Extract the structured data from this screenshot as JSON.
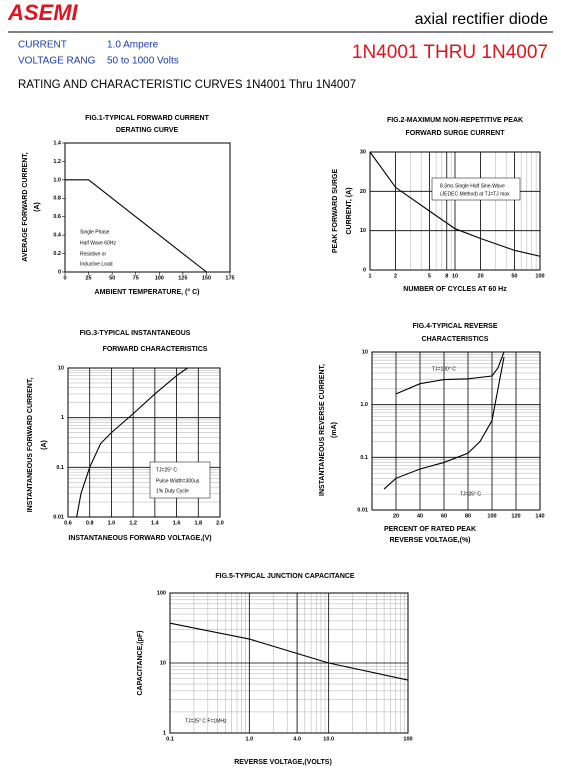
{
  "header": {
    "logo": "ASEMI",
    "product": "axial rectifier diode",
    "specs": [
      [
        "CURRENT",
        "1.0 Ampere"
      ],
      [
        "VOLTAGE RANG",
        "50 to 1000 Volts"
      ]
    ],
    "part_range": "1N4001 THRU 1N4007",
    "heading": "RATING AND CHARACTERISTIC CURVES 1N4001 Thru 1N4007"
  },
  "chart_data": [
    {
      "type": "line",
      "title": [
        "FIG.1-TYPICAL FORWARD CURRENT",
        "DERATING CURVE"
      ],
      "ylabel": [
        "AVERAGE FORWARD CURRENT,",
        "(A)"
      ],
      "xlabel": [
        "AMBIENT TEMPERATURE, (° C)"
      ],
      "xlim": [
        0,
        175
      ],
      "xticks": [
        0,
        25,
        50,
        75,
        100,
        125,
        150,
        175
      ],
      "ylim": [
        0,
        1.4
      ],
      "yticks": [
        0,
        0.2,
        0.4,
        0.6,
        0.8,
        {
          "value": 1,
          "label": "1.0"
        },
        1.2,
        1.4
      ],
      "grid": false,
      "series": [
        {
          "color": "#000000",
          "x": [
            0,
            25,
            150
          ],
          "values": [
            1,
            1,
            0
          ]
        }
      ],
      "annotations": [
        "Single Phase",
        "Half Wave 60Hz",
        "Resistive or",
        "Inductive Load"
      ]
    },
    {
      "type": "line",
      "title": [
        "FIG.2-MAXIMUM NON-REPETITIVE PEAK",
        "FORWARD SURGE CURRENT"
      ],
      "ylabel": [
        "PEAK FORWARD SURGE",
        "CURRENT, (A)"
      ],
      "xlabel": [
        "NUMBER OF CYCLES AT 60 Hz"
      ],
      "xlog": true,
      "xlim": [
        1,
        100
      ],
      "xticks": [
        1,
        2,
        5,
        8,
        10,
        20,
        50,
        100
      ],
      "ylim": [
        0,
        30
      ],
      "yticks": [
        0,
        10,
        20,
        30
      ],
      "grid": true,
      "series": [
        {
          "color": "#000000",
          "x": [
            1,
            2,
            5,
            10,
            20,
            50,
            100
          ],
          "values": [
            30,
            21,
            15,
            10.5,
            8,
            5,
            3.5
          ]
        }
      ],
      "annotations": [
        "8.3ms Single Half Sine-Wave",
        "(JEDEC Method) at TJ=TJ max"
      ]
    },
    {
      "type": "line",
      "title": [
        "FIG.3-TYPICAL INSTANTANEOUS",
        "FORWARD CHARACTERISTICS"
      ],
      "ylabel": [
        "INSTANTANEOUS FORWARD CURRENT,",
        "(A)"
      ],
      "xlabel": [
        "INSTANTANEOUS FORWARD VOLTAGE,(V)"
      ],
      "xlim": [
        0.6,
        2.0
      ],
      "xticks": [
        0.6,
        0.8,
        {
          "value": 1,
          "label": "1.0"
        },
        1.2,
        1.4,
        1.6,
        1.8,
        {
          "value": 2,
          "label": "2.0"
        }
      ],
      "ylog": true,
      "ylim": [
        0.01,
        10
      ],
      "yticks": [
        0.01,
        0.1,
        1,
        10
      ],
      "grid": true,
      "series": [
        {
          "color": "#000000",
          "x": [
            0.68,
            0.72,
            0.8,
            0.9,
            1.0,
            1.2,
            1.4,
            1.6,
            1.7
          ],
          "values": [
            0.01,
            0.03,
            0.1,
            0.3,
            0.5,
            1.2,
            3,
            7,
            10
          ]
        }
      ],
      "annotations": [
        "TJ=25° C",
        "Pulse Width=300us",
        "1% Duty Cycle"
      ]
    },
    {
      "type": "line",
      "title": [
        "FIG.4-TYPICAL REVERSE",
        "CHARACTERISTICS"
      ],
      "ylabel": [
        "INSTANTANEOUS REVERSE CURRENT,",
        "(mA)"
      ],
      "xlabel": [
        "PERCENT OF RATED PEAK",
        "REVERSE VOLTAGE,(%)"
      ],
      "xlim": [
        0,
        140
      ],
      "xticks": [
        20,
        40,
        60,
        80,
        100,
        120,
        140
      ],
      "ylog": true,
      "ylim": [
        0.01,
        10
      ],
      "yticks": [
        0.01,
        0.1,
        {
          "value": 1,
          "label": "1.0"
        },
        10
      ],
      "grid": true,
      "series": [
        {
          "name": "TJ=100° C",
          "color": "#000000",
          "x": [
            20,
            40,
            60,
            80,
            100,
            105,
            110
          ],
          "values": [
            1.6,
            2.5,
            3,
            3.1,
            3.5,
            5,
            10
          ]
        },
        {
          "name": "TJ=25° C",
          "color": "#000000",
          "x": [
            10,
            20,
            40,
            60,
            80,
            90,
            100,
            105,
            110
          ],
          "values": [
            0.025,
            0.04,
            0.06,
            0.08,
            0.12,
            0.2,
            0.5,
            2,
            8
          ]
        }
      ]
    },
    {
      "type": "line",
      "title": [
        "FIG.5-TYPICAL JUNCTION CAPACITANCE"
      ],
      "ylabel": [
        "CAPACITANCE,(pF)"
      ],
      "xlabel": [
        "REVERSE VOLTAGE,(VOLTS)"
      ],
      "xlog": true,
      "xlim": [
        0.1,
        100
      ],
      "xticks": [
        0.1,
        {
          "value": 1,
          "label": "1.0"
        },
        {
          "value": 4,
          "label": "4.0"
        },
        {
          "value": 10,
          "label": "10.0"
        },
        100
      ],
      "ylog": true,
      "ylim": [
        1,
        100
      ],
      "yticks": [
        1,
        10,
        100
      ],
      "grid": true,
      "series": [
        {
          "color": "#000000",
          "x": [
            0.1,
            1,
            10,
            100
          ],
          "values": [
            37,
            22,
            10,
            5.7
          ]
        }
      ],
      "annotations": [
        "TJ=25° C F=1MHz"
      ]
    }
  ]
}
